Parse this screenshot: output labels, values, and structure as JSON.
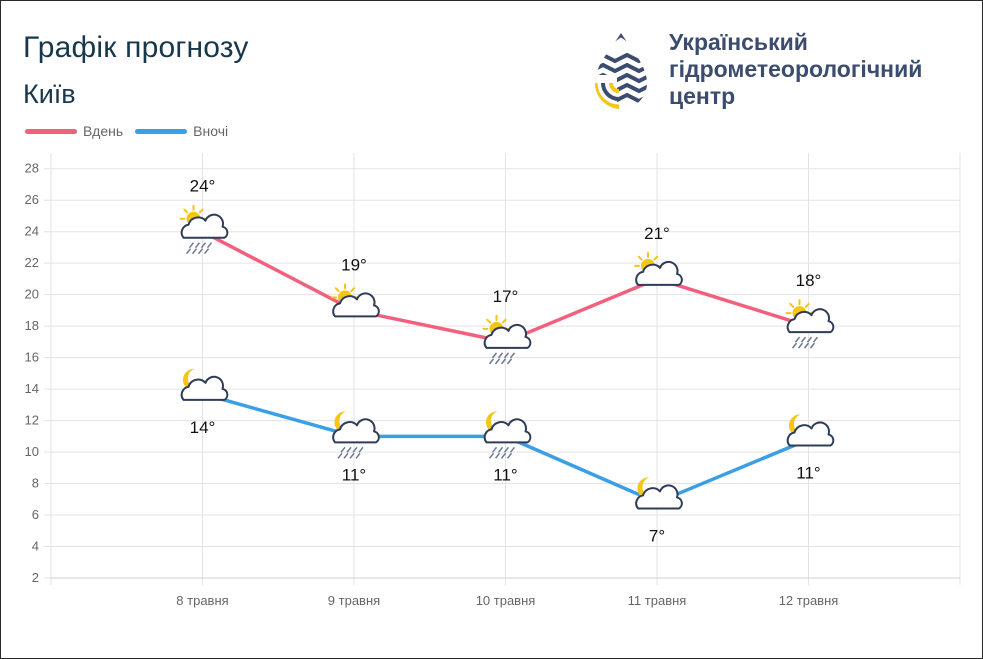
{
  "header": {
    "title": "Графік прогнозу",
    "city": "Київ",
    "org_lines": [
      "Український",
      "гідрометеорологічний",
      "центр"
    ]
  },
  "colors": {
    "day": "#f2607e",
    "night": "#3b9fe6",
    "title": "#17374a",
    "org": "#3b4c6e",
    "sun": "#f5c518"
  },
  "chart_data": {
    "type": "line",
    "categories": [
      "8 травня",
      "9 травня",
      "10 травня",
      "11 травня",
      "12 травня"
    ],
    "series": [
      {
        "name": "Вдень",
        "values": [
          24,
          19,
          17,
          21,
          18
        ],
        "display_values": [
          24,
          19,
          17,
          21,
          18
        ],
        "labels": [
          "24°",
          "19°",
          "17°",
          "21°",
          "18°"
        ],
        "icons": [
          "sun-cloud-rain-icon",
          "sun-cloud-icon",
          "sun-cloud-rain-icon",
          "sun-cloud-icon",
          "sun-cloud-rain-icon"
        ]
      },
      {
        "name": "Вночі",
        "values": [
          13.7,
          11,
          11,
          6.8,
          10.8
        ],
        "display_values": [
          14,
          11,
          11,
          7,
          11
        ],
        "labels": [
          "14°",
          "11°",
          "11°",
          "7°",
          "11°"
        ],
        "icons": [
          "moon-cloud-icon",
          "moon-cloud-rain-icon",
          "moon-cloud-rain-icon",
          "moon-cloud-icon",
          "moon-cloud-icon"
        ]
      }
    ],
    "y_ticks": [
      "2",
      "4",
      "6",
      "8",
      "10",
      "12",
      "14",
      "16",
      "18",
      "20",
      "22",
      "24",
      "26",
      "28"
    ],
    "ylim": [
      2,
      29
    ],
    "grid": true,
    "legend_position": "top-left"
  }
}
